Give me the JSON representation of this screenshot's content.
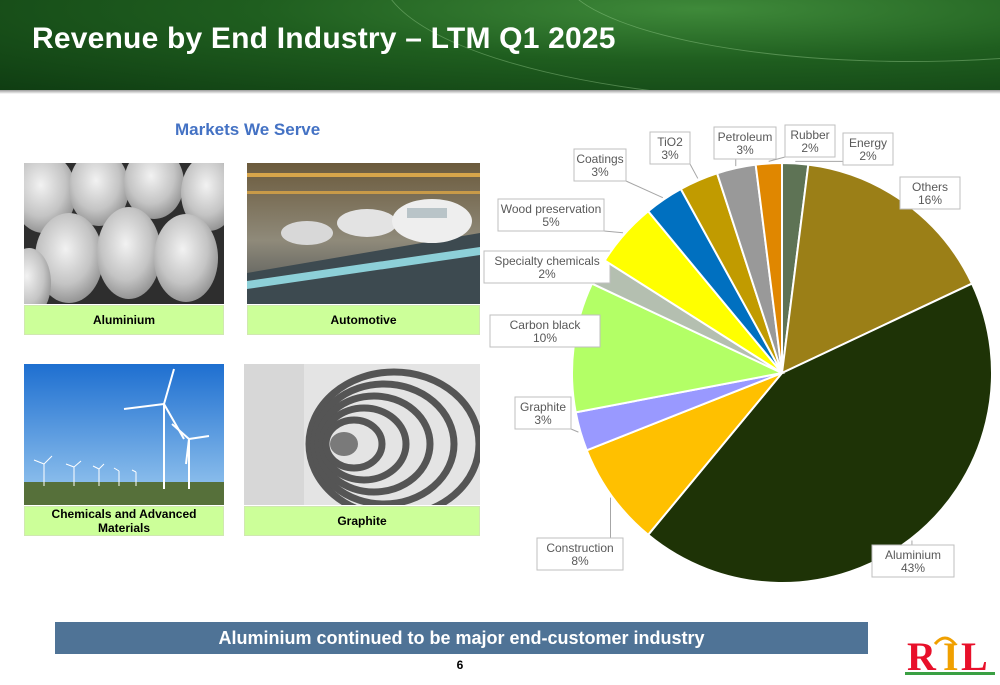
{
  "header": {
    "title": "Revenue by End Industry – LTM Q1 2025"
  },
  "markets": {
    "title": "Markets We Serve",
    "tiles": [
      {
        "label": "Aluminium"
      },
      {
        "label": "Automotive"
      },
      {
        "label": "Chemicals and Advanced Materials"
      },
      {
        "label": "Graphite"
      }
    ]
  },
  "chart_data": {
    "type": "pie",
    "start": "12 o'clock",
    "direction": "clockwise",
    "slices": [
      {
        "label": "Energy",
        "value": 2,
        "pct": "2%",
        "color": "#5e7355"
      },
      {
        "label": "Others",
        "value": 16,
        "pct": "16%",
        "color": "#9b7f17"
      },
      {
        "label": "Aluminium",
        "value": 43,
        "pct": "43%",
        "color": "#1e3306"
      },
      {
        "label": "Construction",
        "value": 8,
        "pct": "8%",
        "color": "#ffc000"
      },
      {
        "label": "Graphite",
        "value": 3,
        "pct": "3%",
        "color": "#9999ff"
      },
      {
        "label": "Carbon black",
        "value": 10,
        "pct": "10%",
        "color": "#b3ff66"
      },
      {
        "label": "Specialty chemicals",
        "value": 2,
        "pct": "2%",
        "color": "#b4bfb0"
      },
      {
        "label": "Wood preservation",
        "value": 5,
        "pct": "5%",
        "color": "#ffff00"
      },
      {
        "label": "Coatings",
        "value": 3,
        "pct": "3%",
        "color": "#0070c0"
      },
      {
        "label": "TiO2",
        "value": 3,
        "pct": "3%",
        "color": "#c19b00"
      },
      {
        "label": "Petroleum",
        "value": 3,
        "pct": "3%",
        "color": "#999999"
      },
      {
        "label": "Rubber",
        "value": 2,
        "pct": "2%",
        "color": "#e08700"
      }
    ]
  },
  "footer": {
    "banner": "Aluminium continued to be major end-customer industry",
    "page_number": "6",
    "logo_text": "RIL"
  }
}
